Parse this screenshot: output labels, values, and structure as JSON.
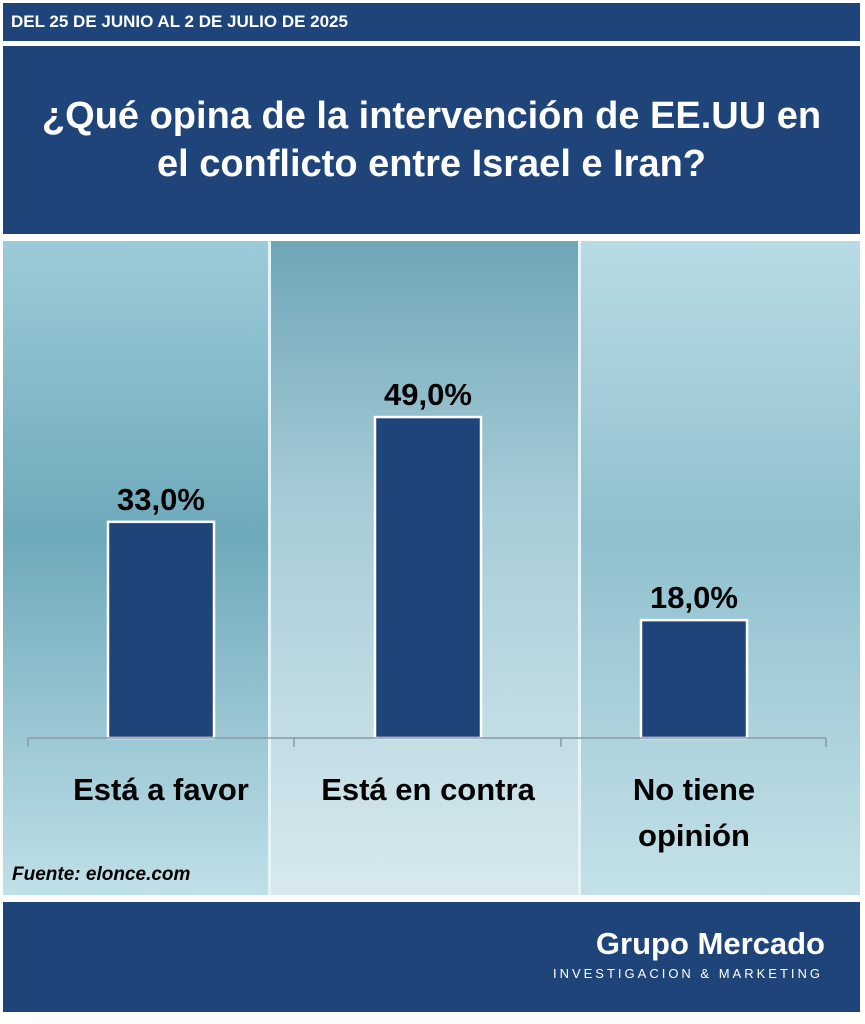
{
  "header": {
    "date_range": "DEL 25 DE JUNIO AL 2 DE JULIO DE 2025"
  },
  "chart_data": {
    "type": "bar",
    "title": "¿Qué opina de la intervención de EE.UU en el conflicto entre Israel e Iran?",
    "categories": [
      "Está a favor",
      "Está en contra",
      "No tiene opinión"
    ],
    "values": [
      33.0,
      49.0,
      18.0
    ],
    "value_labels": [
      "33,0%",
      "49,0%",
      "18,0%"
    ],
    "ylim": [
      0,
      100
    ],
    "grid": false,
    "legend": "none",
    "bar_color": "#1f4479",
    "bar_border_color": "#ffffff"
  },
  "footer": {
    "source": "Fuente: elonce.com",
    "brand": "Grupo Mercado",
    "tagline": "INVESTIGACION & MARKETING"
  },
  "colors": {
    "primary": "#1f4479",
    "photo_tint": "#7fb6c6"
  }
}
